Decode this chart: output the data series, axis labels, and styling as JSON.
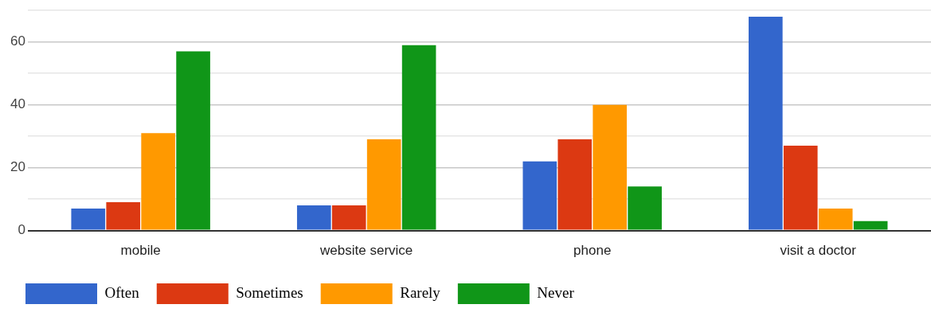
{
  "chart_data": {
    "type": "bar",
    "categories": [
      "mobile",
      "website service",
      "phone",
      "visit a doctor"
    ],
    "series": [
      {
        "name": "Often",
        "color": "#3366cc",
        "values": [
          7,
          8,
          22,
          68
        ]
      },
      {
        "name": "Sometimes",
        "color": "#dc3912",
        "values": [
          9,
          8,
          29,
          27
        ]
      },
      {
        "name": "Rarely",
        "color": "#ff9900",
        "values": [
          31,
          29,
          40,
          7
        ]
      },
      {
        "name": "Never",
        "color": "#109618",
        "values": [
          57,
          59,
          14,
          3
        ]
      }
    ],
    "ylim": [
      0,
      70
    ],
    "yticks": [
      0,
      {
        "value": 10,
        "label": null
      },
      20,
      {
        "value": 30,
        "label": null
      },
      40,
      {
        "value": 50,
        "label": null
      },
      60,
      {
        "value": 70,
        "label": null
      }
    ],
    "grid": true,
    "legend": "bottom left"
  }
}
